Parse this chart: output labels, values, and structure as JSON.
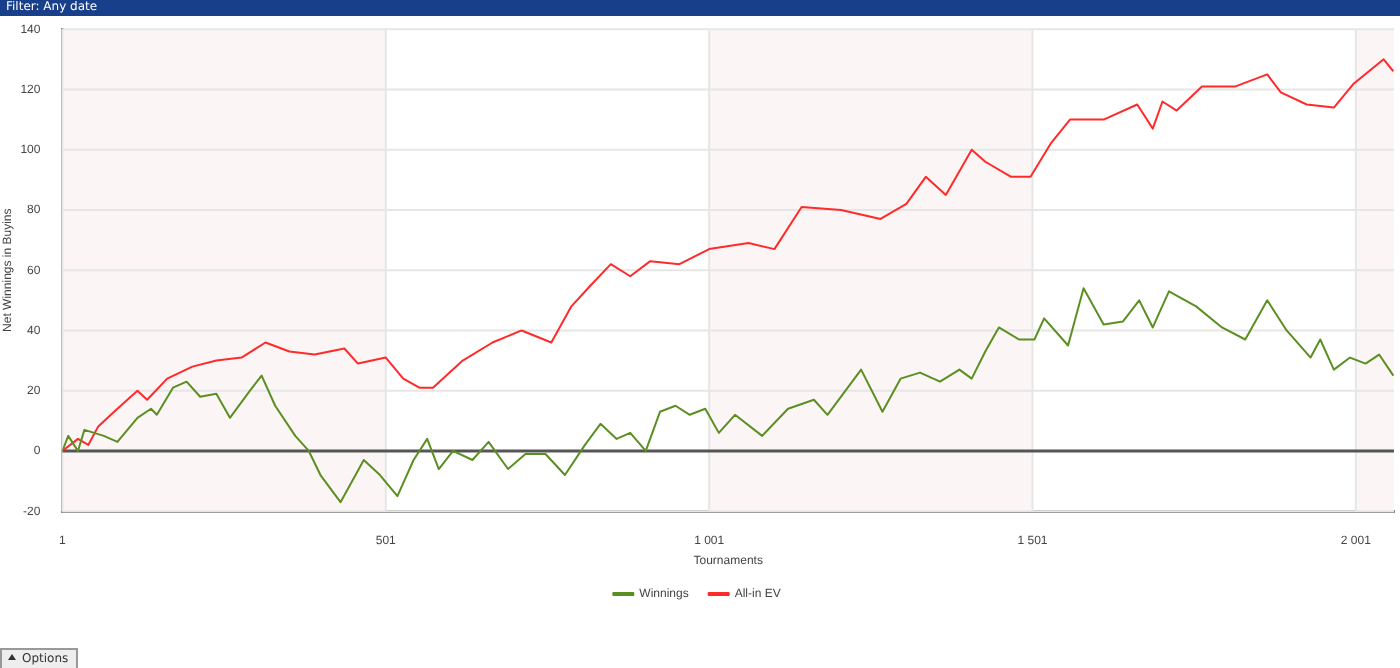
{
  "chart_data": {
    "type": "line",
    "xlabel": "Tournaments",
    "ylabel": "Net Winnings in Buyins",
    "annotations": [
      "Filter: Any date",
      "Options"
    ],
    "xlim": [
      1,
      2060
    ],
    "xticks": [
      1,
      501,
      {
        "value": 1001,
        "label": "1 001"
      },
      {
        "value": 1501,
        "label": "1 501"
      },
      {
        "value": 2001,
        "label": "2 001"
      }
    ],
    "ylim": [
      -20,
      140
    ],
    "yticks": [
      -20,
      0,
      20,
      40,
      60,
      80,
      100,
      120,
      140
    ],
    "grid": true,
    "legend": "bottom",
    "marker": "none",
    "line_style": "solid",
    "ref_lines": [
      {
        "axis": "y",
        "value": 0,
        "color": "#555555"
      }
    ],
    "bands": [
      {
        "axis": "x",
        "from": 1,
        "to": 501,
        "color": "#fbf5f5"
      },
      {
        "axis": "x",
        "from": 1001,
        "to": 1501,
        "color": "#fbf5f5"
      },
      {
        "axis": "x",
        "from": 2001,
        "to": 2060,
        "color": "#fbf5f5"
      }
    ],
    "series": [
      {
        "name": "Winnings",
        "color": "#5b8f22",
        "x": [
          1,
          10,
          25,
          35,
          65,
          86,
          117,
          138,
          147,
          172,
          193,
          214,
          239,
          260,
          291,
          309,
          330,
          361,
          382,
          400,
          431,
          467,
          492,
          519,
          544,
          565,
          583,
          605,
          635,
          660,
          690,
          717,
          748,
          778,
          809,
          833,
          858,
          879,
          903,
          925,
          949,
          971,
          995,
          1016,
          1041,
          1083,
          1123,
          1163,
          1184,
          1205,
          1236,
          1269,
          1297,
          1327,
          1358,
          1388,
          1407,
          1428,
          1449,
          1480,
          1504,
          1519,
          1556,
          1580,
          1611,
          1641,
          1666,
          1687,
          1712,
          1754,
          1794,
          1830,
          1864,
          1894,
          1931,
          1946,
          1967,
          1992,
          2016,
          2037,
          2059
        ],
        "values": [
          0,
          5,
          0,
          7,
          5,
          3,
          11,
          14,
          12,
          21,
          23,
          18,
          19,
          11,
          20,
          25,
          15,
          5,
          0,
          -8,
          -17,
          -3,
          -8,
          -15,
          -3,
          4,
          -6,
          0,
          -3,
          3,
          -6,
          -1,
          -1,
          -8,
          2,
          9,
          4,
          6,
          0,
          13,
          15,
          12,
          14,
          6,
          12,
          5,
          14,
          17,
          12,
          18,
          27,
          13,
          24,
          26,
          23,
          27,
          24,
          33,
          41,
          37,
          37,
          44,
          35,
          54,
          42,
          43,
          50,
          41,
          53,
          48,
          41,
          37,
          50,
          40,
          31,
          37,
          27,
          31,
          29,
          32,
          25
        ]
      },
      {
        "name": "All-in EV",
        "color": "#ff2a2a",
        "x": [
          1,
          25,
          41,
          56,
          86,
          117,
          132,
          163,
          202,
          239,
          278,
          315,
          352,
          391,
          437,
          458,
          501,
          528,
          553,
          574,
          620,
          666,
          711,
          757,
          788,
          818,
          849,
          879,
          910,
          955,
          1001,
          1062,
          1102,
          1144,
          1205,
          1266,
          1306,
          1336,
          1367,
          1407,
          1428,
          1468,
          1498,
          1529,
          1559,
          1611,
          1663,
          1687,
          1702,
          1724,
          1763,
          1815,
          1864,
          1885,
          1925,
          1967,
          1998,
          2044,
          2059
        ],
        "values": [
          0,
          4,
          2,
          8,
          14,
          20,
          17,
          24,
          28,
          30,
          31,
          36,
          33,
          32,
          34,
          29,
          31,
          24,
          21,
          21,
          30,
          36,
          40,
          36,
          48,
          55,
          62,
          58,
          63,
          62,
          67,
          69,
          67,
          81,
          80,
          77,
          82,
          91,
          85,
          100,
          96,
          91,
          91,
          102,
          110,
          110,
          115,
          107,
          116,
          113,
          121,
          121,
          125,
          119,
          115,
          114,
          122,
          130,
          126
        ]
      }
    ]
  }
}
